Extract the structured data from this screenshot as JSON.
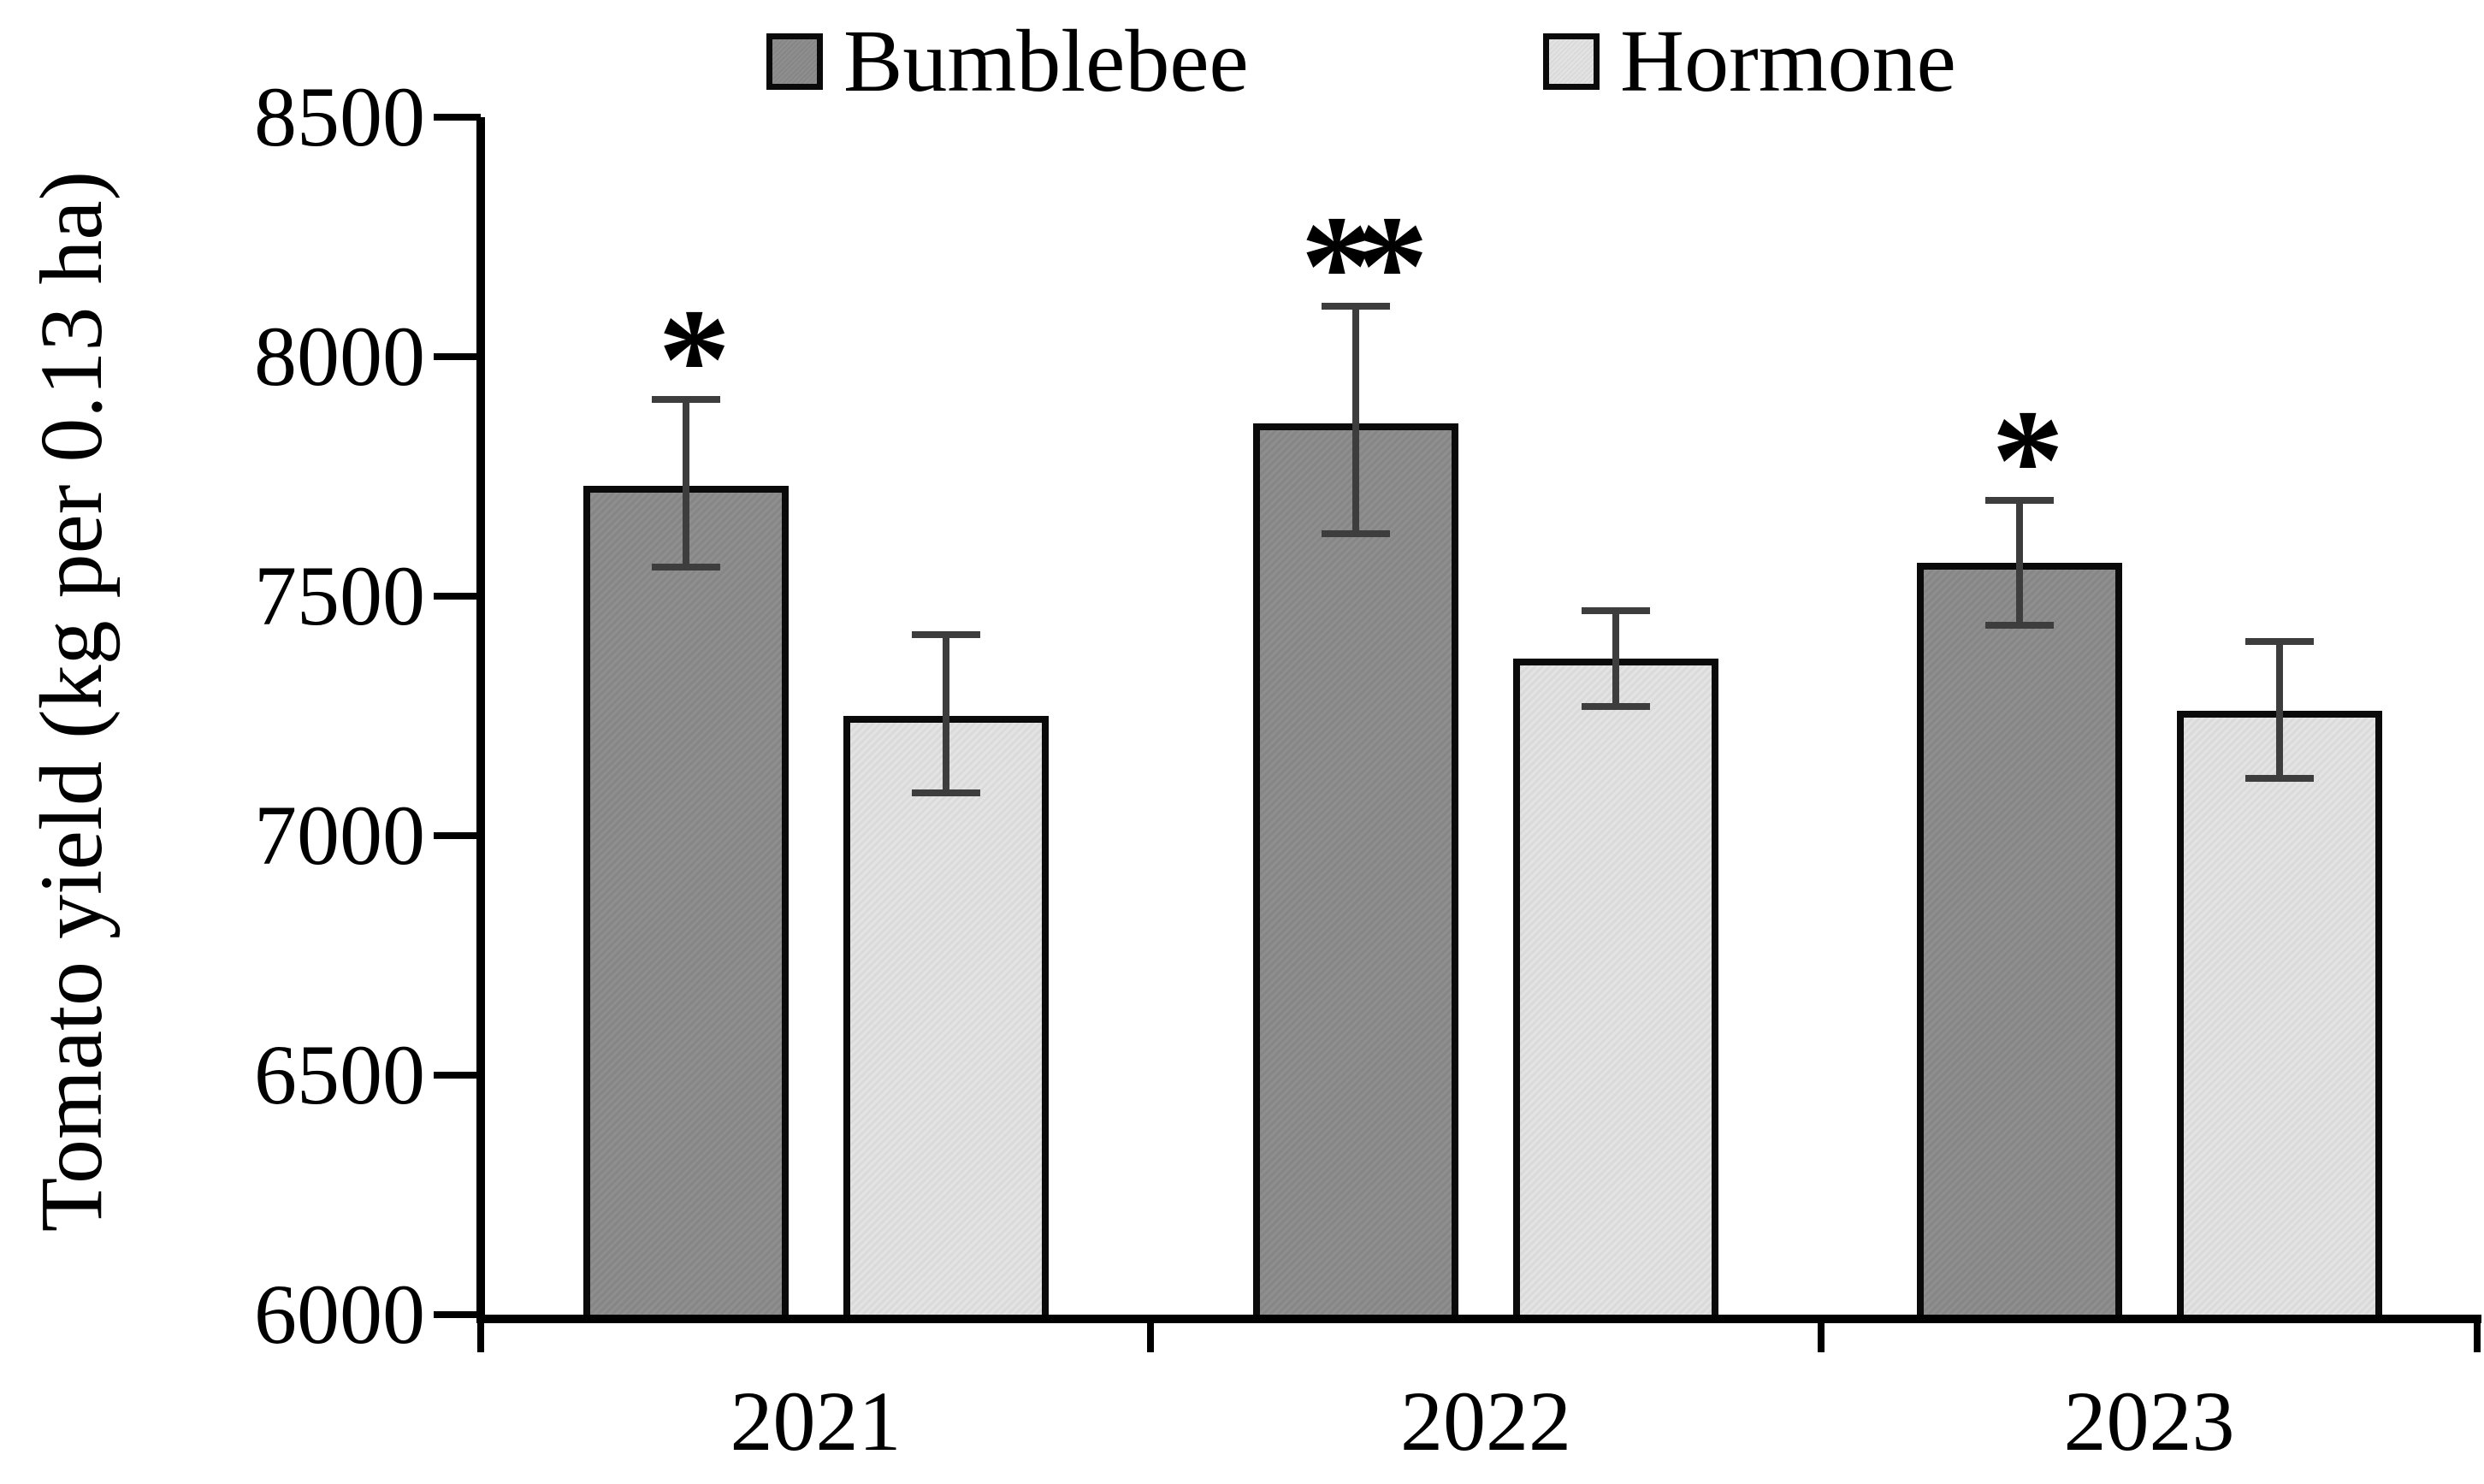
{
  "chart_data": {
    "type": "bar",
    "title": "",
    "xlabel": "",
    "ylabel": "Tomato yield (kg per 0.13 ha)",
    "categories": [
      "2021",
      "2022",
      "2023"
    ],
    "series": [
      {
        "name": "Bumblebee",
        "fill": "#8b8b8b",
        "values": [
          7730,
          7860,
          7570
        ],
        "errors_up": [
          180,
          245,
          130
        ],
        "errors_down": [
          170,
          230,
          130
        ]
      },
      {
        "name": "Hormone",
        "fill": "#e2e2e2",
        "values": [
          7250,
          7370,
          7260
        ],
        "errors_up": [
          170,
          100,
          145
        ],
        "errors_down": [
          160,
          100,
          140
        ]
      }
    ],
    "significance": [
      {
        "category": "2021",
        "series": "Bumblebee",
        "marker": "*"
      },
      {
        "category": "2022",
        "series": "Bumblebee",
        "marker": "**"
      },
      {
        "category": "2023",
        "series": "Bumblebee",
        "marker": "*"
      }
    ],
    "ylim": [
      6000,
      8500
    ],
    "yticks": [
      8500,
      8000,
      7500,
      7000,
      6500,
      6000
    ],
    "grid": false,
    "error_bars": true,
    "legend_position": "top"
  },
  "legend": {
    "items": [
      {
        "label": "Bumblebee",
        "color": "#8b8b8b"
      },
      {
        "label": "Hormone",
        "color": "#e2e2e2"
      }
    ]
  },
  "colors": {
    "axis": "#000000",
    "bar_border": "#0a0a0a",
    "error_bar": "#3d3d3d",
    "background": "#ffffff",
    "text": "#000000"
  }
}
